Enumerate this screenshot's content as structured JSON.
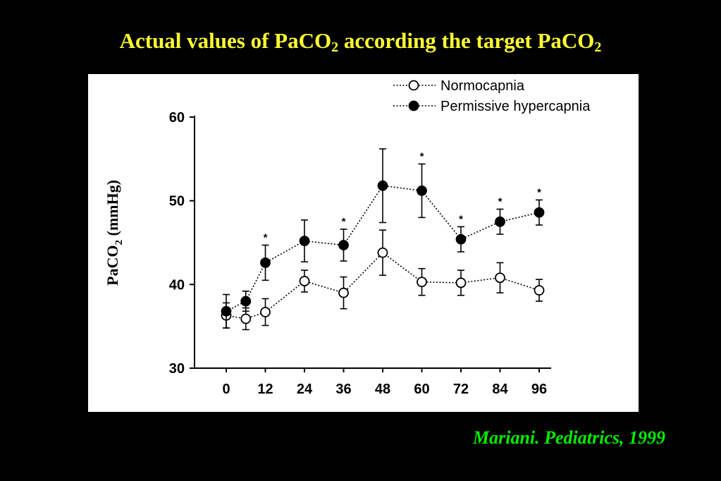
{
  "slide": {
    "title_part1": "Actual values of PaCO",
    "title_sub1": "2",
    "title_part2": " according the target PaCO",
    "title_sub2": "2",
    "citation": "Mariani. Pediatrics, 1999"
  },
  "chart_data": {
    "type": "line",
    "ylabel_main": "PaCO",
    "ylabel_sub": "2",
    "ylabel_unit": " (mmHg)",
    "xlabel": "",
    "ylim": [
      30,
      60
    ],
    "yticks": [
      30,
      40,
      50,
      60
    ],
    "xticks": [
      0,
      12,
      24,
      36,
      48,
      60,
      72,
      84,
      96
    ],
    "legend_position": "top-right",
    "grid": false,
    "series": [
      {
        "name": "Normocapnia",
        "marker": "open-circle",
        "color": "#000000",
        "x": [
          0,
          6,
          12,
          24,
          36,
          48,
          60,
          72,
          84,
          96
        ],
        "y": [
          36.3,
          35.9,
          36.7,
          40.4,
          39.0,
          43.8,
          40.3,
          40.2,
          40.8,
          39.3
        ],
        "error": [
          1.5,
          1.3,
          1.6,
          1.3,
          1.9,
          2.7,
          1.6,
          1.5,
          1.8,
          1.3
        ]
      },
      {
        "name": "Permissive hypercapnia",
        "marker": "filled-circle",
        "color": "#000000",
        "x": [
          0,
          6,
          12,
          24,
          36,
          48,
          60,
          72,
          84,
          96
        ],
        "y": [
          36.8,
          38.0,
          42.6,
          45.2,
          44.7,
          51.8,
          51.2,
          45.4,
          47.5,
          48.6
        ],
        "error": [
          2.0,
          1.2,
          2.1,
          2.5,
          1.9,
          4.4,
          3.2,
          1.5,
          1.5,
          1.5
        ]
      }
    ],
    "significance_marker": "*",
    "significant_x": [
      12,
      36,
      60,
      72,
      84,
      96
    ]
  }
}
